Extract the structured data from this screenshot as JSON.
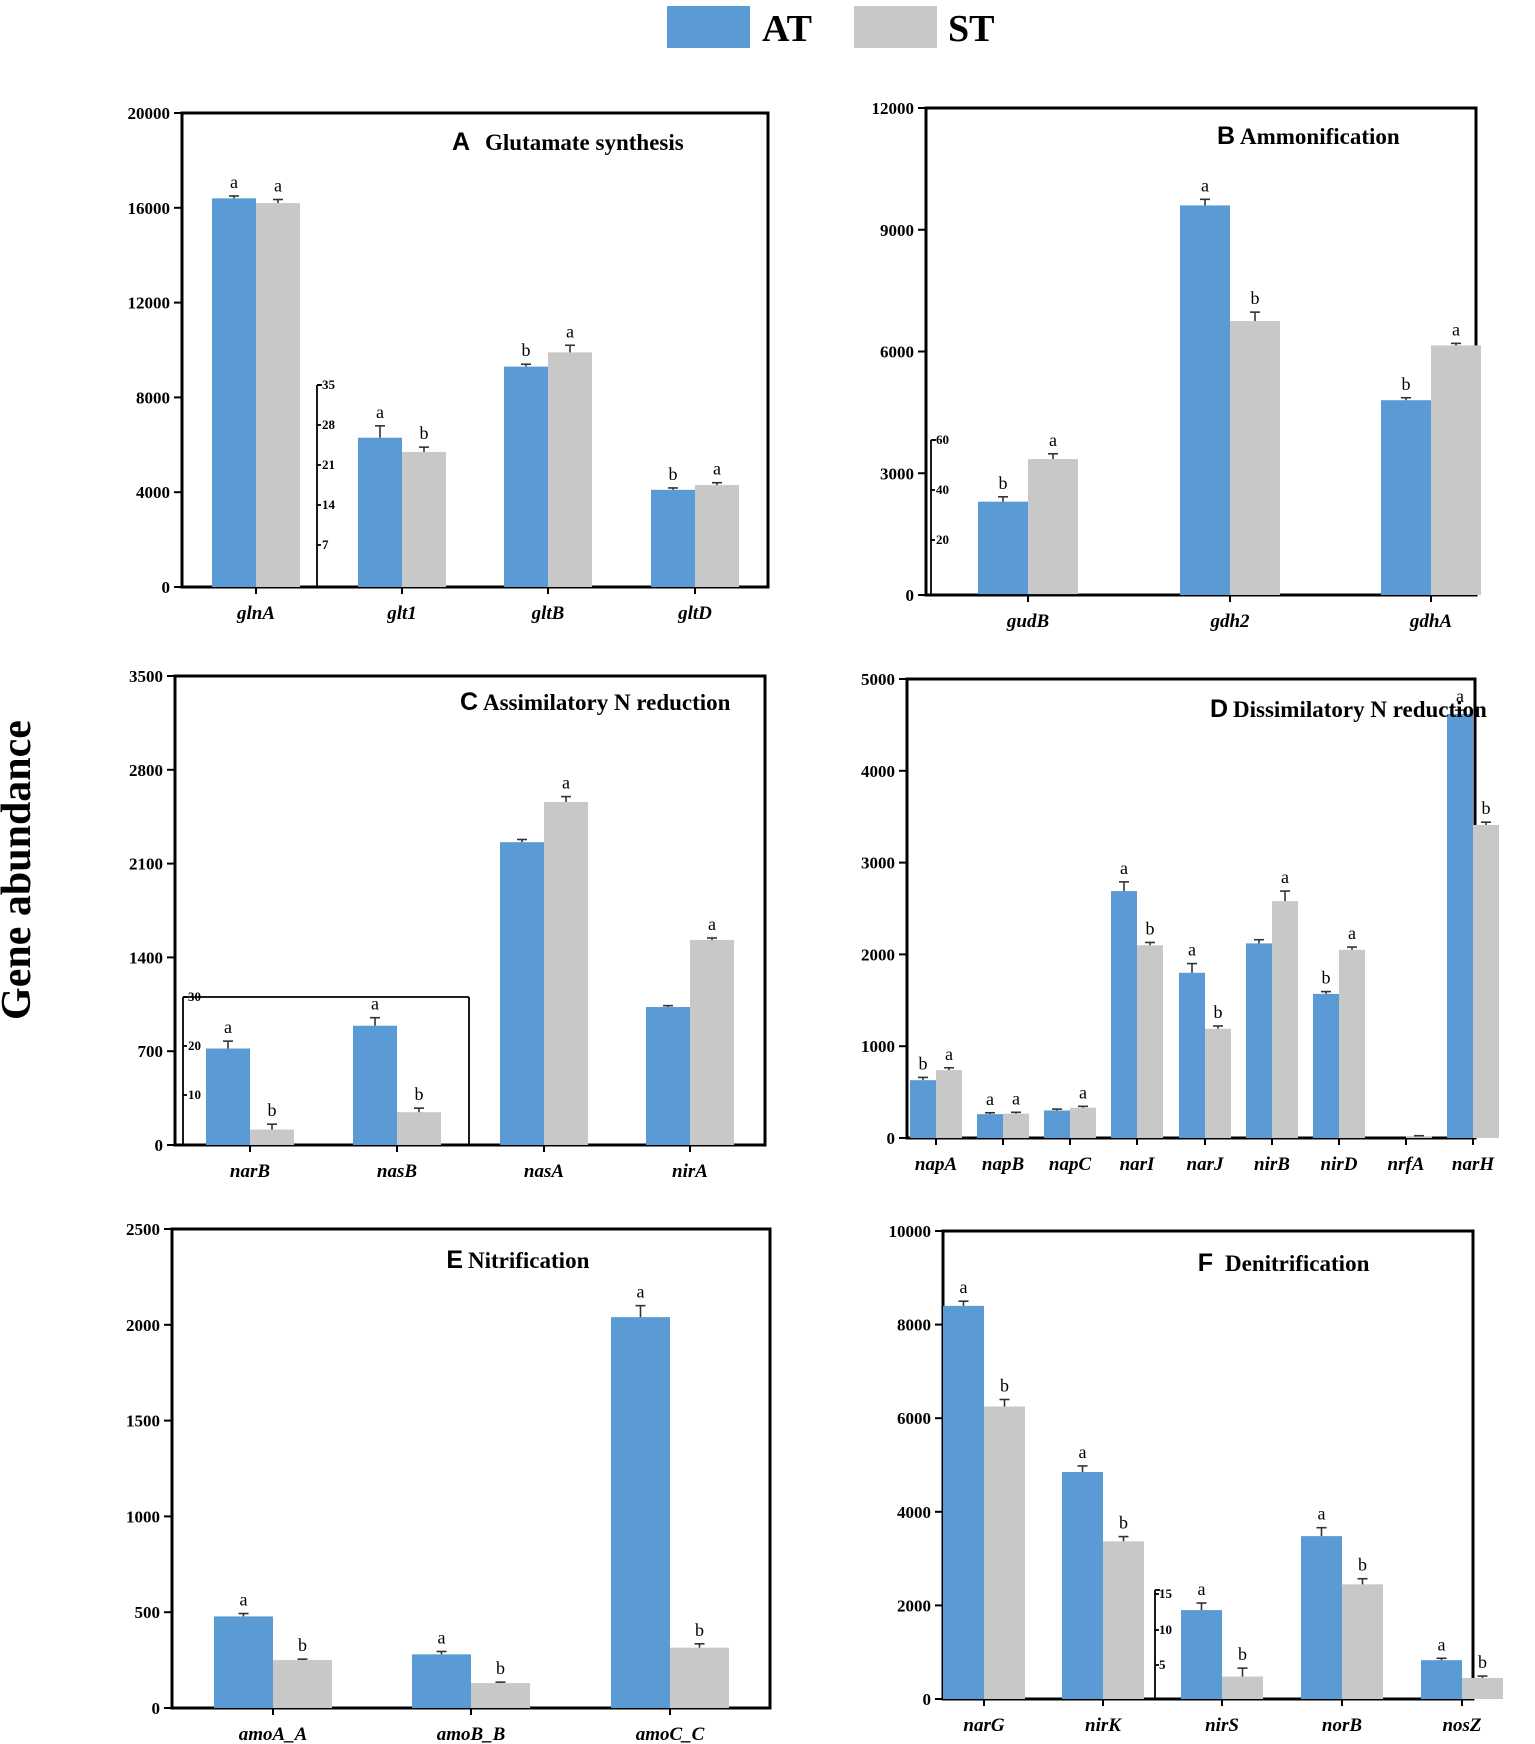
{
  "figure": {
    "ylabel": "Gene abundance",
    "colors": {
      "AT": "#5b9bd5",
      "ST": "#c8c8c8"
    }
  },
  "legend": [
    {
      "name": "AT",
      "color": "#5b9bd5"
    },
    {
      "name": "ST",
      "color": "#c8c8c8"
    }
  ],
  "chart_data": [
    {
      "type": "bar",
      "letter": "A",
      "title": "Glutamate synthesis",
      "categories": [
        "glnA",
        "glt1",
        "gltB",
        "gltD"
      ],
      "series": [
        {
          "name": "AT",
          "values": [
            16400,
            6300,
            9300,
            4100
          ],
          "errors": [
            100,
            500,
            100,
            80
          ],
          "sig": [
            "a",
            "a",
            "b",
            "b"
          ]
        },
        {
          "name": "ST",
          "values": [
            16200,
            5700,
            9900,
            4300
          ],
          "errors": [
            150,
            200,
            300,
            100
          ],
          "sig": [
            "a",
            "b",
            "a",
            "a"
          ]
        }
      ],
      "ylim": [
        0,
        20000
      ],
      "yticks": [
        0,
        4000,
        8000,
        12000,
        16000,
        20000
      ],
      "inset": {
        "ticks": [
          7,
          14,
          21,
          28,
          35
        ]
      }
    },
    {
      "type": "bar",
      "letter": "B",
      "title": "Ammonification",
      "categories": [
        "gudB",
        "gdh2",
        "gdhA"
      ],
      "series": [
        {
          "name": "AT",
          "values": [
            2300,
            9600,
            4800
          ],
          "errors": [
            120,
            150,
            60
          ],
          "sig": [
            "b",
            "a",
            "b"
          ]
        },
        {
          "name": "ST",
          "values": [
            3350,
            6750,
            6150
          ],
          "errors": [
            130,
            220,
            50
          ],
          "sig": [
            "a",
            "b",
            "a"
          ]
        }
      ],
      "ylim": [
        0,
        12000
      ],
      "yticks": [
        0,
        3000,
        6000,
        9000,
        12000
      ],
      "inset": {
        "ticks": [
          20,
          40,
          60
        ]
      }
    },
    {
      "type": "bar",
      "letter": "C",
      "title": "Assimilatory N reduction",
      "categories": [
        "narB",
        "nasB",
        "nasA",
        "nirA"
      ],
      "series": [
        {
          "name": "AT",
          "values": [
            720,
            890,
            2260,
            1030
          ],
          "errors": [
            55,
            60,
            20,
            10
          ],
          "sig": [
            "a",
            "a",
            "",
            ""
          ]
        },
        {
          "name": "ST",
          "values": [
            115,
            245,
            2560,
            1530
          ],
          "errors": [
            40,
            30,
            40,
            15
          ],
          "sig": [
            "b",
            "b",
            "a",
            "a"
          ]
        }
      ],
      "ylim": [
        0,
        3500
      ],
      "yticks": [
        0,
        700,
        1400,
        2100,
        2800,
        3500
      ],
      "inset": {
        "ticks": [
          10,
          20,
          30
        ]
      }
    },
    {
      "type": "bar",
      "letter": "D",
      "title": "Dissimilatory N reduction",
      "categories": [
        "napA",
        "napB",
        "napC",
        "narI",
        "narJ",
        "nirB",
        "nirD",
        "nrfA",
        "narH"
      ],
      "series": [
        {
          "name": "AT",
          "values": [
            630,
            260,
            300,
            2690,
            1800,
            2120,
            1570,
            0,
            4620
          ],
          "errors": [
            30,
            15,
            15,
            100,
            100,
            40,
            25,
            0,
            40
          ],
          "sig": [
            "b",
            "a",
            "",
            "a",
            "a",
            "",
            "b",
            "",
            "a"
          ]
        },
        {
          "name": "ST",
          "values": [
            740,
            265,
            330,
            2100,
            1190,
            2580,
            2050,
            20,
            3410
          ],
          "errors": [
            25,
            15,
            15,
            30,
            30,
            110,
            30,
            5,
            30
          ],
          "sig": [
            "a",
            "a",
            "a",
            "b",
            "b",
            "a",
            "a",
            "",
            "b"
          ]
        }
      ],
      "ylim": [
        0,
        5000
      ],
      "yticks": [
        0,
        1000,
        2000,
        3000,
        4000,
        5000
      ]
    },
    {
      "type": "bar",
      "letter": "E",
      "title": "Nitrification",
      "categories": [
        "amoA_A",
        "amoB_B",
        "amoC_C"
      ],
      "series": [
        {
          "name": "AT",
          "values": [
            478,
            280,
            2040
          ],
          "errors": [
            15,
            15,
            60
          ],
          "sig": [
            "a",
            "a",
            "a"
          ]
        },
        {
          "name": "ST",
          "values": [
            250,
            130,
            315
          ],
          "errors": [
            5,
            5,
            20
          ],
          "sig": [
            "b",
            "b",
            "b"
          ]
        }
      ],
      "ylim": [
        0,
        2500
      ],
      "yticks": [
        0,
        500,
        1000,
        1500,
        2000,
        2500
      ]
    },
    {
      "type": "bar",
      "letter": "F",
      "title": "Denitrification",
      "categories": [
        "narG",
        "nirK",
        "nirS",
        "norB",
        "nosZ"
      ],
      "series": [
        {
          "name": "AT",
          "values": [
            8400,
            4850,
            1900,
            3480,
            830
          ],
          "errors": [
            100,
            130,
            150,
            180,
            40
          ],
          "sig": [
            "a",
            "a",
            "a",
            "a",
            "a"
          ]
        },
        {
          "name": "ST",
          "values": [
            6250,
            3370,
            480,
            2450,
            450
          ],
          "errors": [
            150,
            100,
            180,
            120,
            40
          ],
          "sig": [
            "b",
            "b",
            "b",
            "b",
            "b"
          ]
        }
      ],
      "ylim": [
        0,
        10000
      ],
      "yticks": [
        0,
        2000,
        4000,
        6000,
        8000,
        10000
      ],
      "inset": {
        "ticks": [
          5,
          10,
          15
        ]
      }
    }
  ]
}
